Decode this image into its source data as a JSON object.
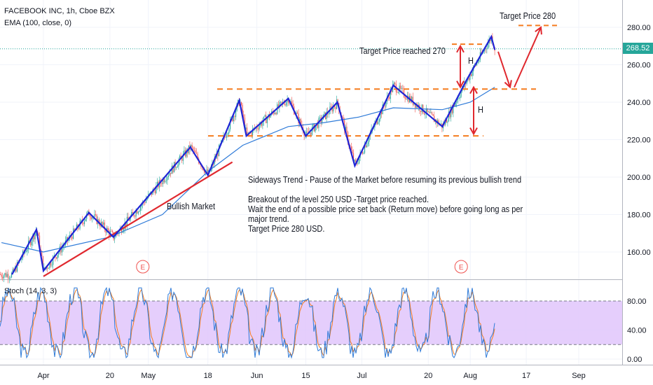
{
  "header": {
    "symbol_line": "FACEBOOK INC, 1h, Cboe BZX",
    "indicator_line": "EMA (100, close, 0)",
    "stoch_label": "Stoch (14, 3, 3)"
  },
  "current_price": "268.52",
  "annotations": {
    "target_280": "Target Price 280",
    "target_270": "Target Price reached 270",
    "h_top": "H",
    "h_bottom": "H",
    "bullish_market": "Bullish Market",
    "earnings_1": "E",
    "earnings_2": "E",
    "sideways_lines": [
      "Sideways Trend - Pause of the Market before resuming its previous bullish trend",
      "",
      "Breakout of the level 250 USD -Target price reached.",
      "Wait the end of a possible price set back (Return move) before going long as per",
      "major trend.",
      "Target Price 280 USD."
    ]
  },
  "colors": {
    "zigzag": "#1f24d6",
    "ema": "#2f7bd8",
    "support_line": "#e0282e",
    "level_dashes": "#f57c1f",
    "arrows": "#e0282e",
    "candle_up": "#26a69a",
    "candle_down": "#ef5350",
    "stoch_band": "#e1c6fb",
    "stoch_k": "#2f7bd8",
    "stoch_d": "#f57c1f",
    "price_tag": "#26a69a"
  },
  "chart_data": [
    {
      "type": "candlestick",
      "title": "FACEBOOK INC, 1h, Cboe BZX",
      "x_ticks": [
        "Apr",
        "20",
        "May",
        "18",
        "Jun",
        "15",
        "Jul",
        "20",
        "Aug",
        "17",
        "Sep"
      ],
      "y_ticks": [
        160,
        180,
        200,
        220,
        240,
        260,
        280
      ],
      "ylim": [
        147,
        292
      ],
      "zigzag_pivots": [
        {
          "date": "Mar 23",
          "price": 148
        },
        {
          "date": "Mar 30",
          "price": 172
        },
        {
          "date": "Apr 1",
          "price": 150
        },
        {
          "date": "Apr 14",
          "price": 181
        },
        {
          "date": "Apr 21",
          "price": 168
        },
        {
          "date": "May 13",
          "price": 216
        },
        {
          "date": "May 18",
          "price": 201
        },
        {
          "date": "May 27",
          "price": 241
        },
        {
          "date": "May 29",
          "price": 222
        },
        {
          "date": "Jun 10",
          "price": 242
        },
        {
          "date": "Jun 15",
          "price": 222
        },
        {
          "date": "Jun 24",
          "price": 240
        },
        {
          "date": "Jun 29",
          "price": 206
        },
        {
          "date": "Jul 10",
          "price": 249
        },
        {
          "date": "Jul 24",
          "price": 227
        },
        {
          "date": "Jul 31",
          "price": 252
        },
        {
          "date": "Aug 7",
          "price": 275
        },
        {
          "date": "Aug 7",
          "price": 268
        }
      ],
      "ema_100": [
        {
          "date": "Mar 20",
          "price": 165
        },
        {
          "date": "Apr 1",
          "price": 160
        },
        {
          "date": "Apr 20",
          "price": 168
        },
        {
          "date": "May 5",
          "price": 180
        },
        {
          "date": "May 18",
          "price": 203
        },
        {
          "date": "May 28",
          "price": 217
        },
        {
          "date": "Jun 10",
          "price": 227
        },
        {
          "date": "Jun 20",
          "price": 229
        },
        {
          "date": "Jun 30",
          "price": 232
        },
        {
          "date": "Jul 10",
          "price": 237
        },
        {
          "date": "Jul 24",
          "price": 236
        },
        {
          "date": "Aug 1",
          "price": 240
        },
        {
          "date": "Aug 8",
          "price": 248
        }
      ],
      "levels": [
        {
          "name": "Target 280",
          "price": 281
        },
        {
          "name": "Target 270",
          "price": 271
        },
        {
          "name": "Range top",
          "price": 247
        },
        {
          "name": "Range bottom",
          "price": 222
        }
      ],
      "support_trendline": [
        {
          "date": "Apr 1",
          "price": 147
        },
        {
          "date": "May 25",
          "price": 208
        }
      ]
    },
    {
      "type": "line",
      "title": "Stoch (14, 3, 3)",
      "y_ticks": [
        0,
        40,
        80
      ],
      "ylim": [
        -3,
        105
      ],
      "band": [
        20,
        80
      ],
      "series": [
        {
          "name": "%K"
        },
        {
          "name": "%D"
        }
      ]
    }
  ]
}
